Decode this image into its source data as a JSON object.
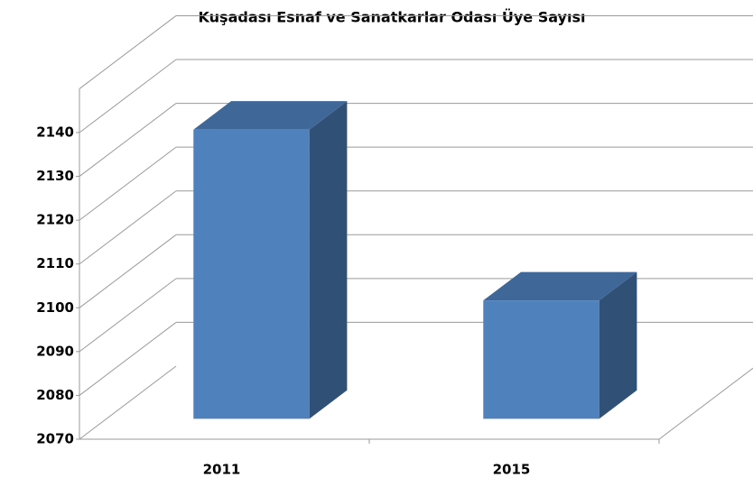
{
  "chart_data": {
    "type": "bar3d",
    "title": "Kuşadası Esnaf ve Sanatkarlar Odası Üye Sayısı",
    "categories": [
      "2011",
      "2015"
    ],
    "values": [
      2136,
      2097
    ],
    "color": "#4f81bd",
    "ylim": [
      2070,
      2150
    ],
    "yticks": [
      2070,
      2080,
      2090,
      2100,
      2110,
      2120,
      2130,
      2140
    ],
    "grid": true
  }
}
